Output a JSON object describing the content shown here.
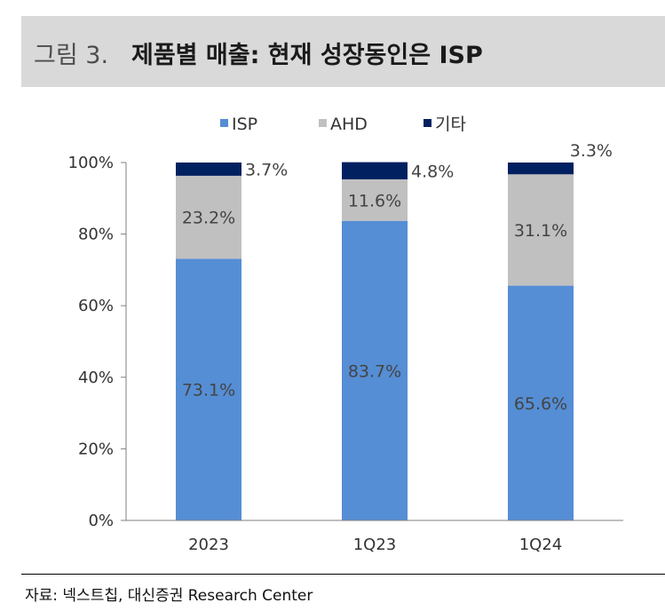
{
  "header": {
    "figure_label": "그림 3.",
    "title": "제품별 매출: 현재 성장동인은 ISP"
  },
  "source": "자료: 넥스트칩, 대신증권 Research Center",
  "chart_data": {
    "type": "bar",
    "stacked": true,
    "categories": [
      "2023",
      "1Q23",
      "1Q24"
    ],
    "series": [
      {
        "name": "ISP",
        "values": [
          73.1,
          83.7,
          65.6
        ],
        "labels": [
          "73.1%",
          "83.7%",
          "65.6%"
        ],
        "color": "#558ed5"
      },
      {
        "name": "AHD",
        "values": [
          23.2,
          11.6,
          31.1
        ],
        "labels": [
          "23.2%",
          "11.6%",
          "31.1%"
        ],
        "color": "#c0c0c0"
      },
      {
        "name": "기타",
        "values": [
          3.7,
          4.8,
          3.3
        ],
        "labels": [
          "3.7%",
          "4.8%",
          "3.3%"
        ],
        "color": "#002060"
      }
    ],
    "ylim": [
      0,
      100
    ],
    "yticks": [
      "0%",
      "20%",
      "40%",
      "60%",
      "80%",
      "100%"
    ],
    "legend_position": "top"
  }
}
